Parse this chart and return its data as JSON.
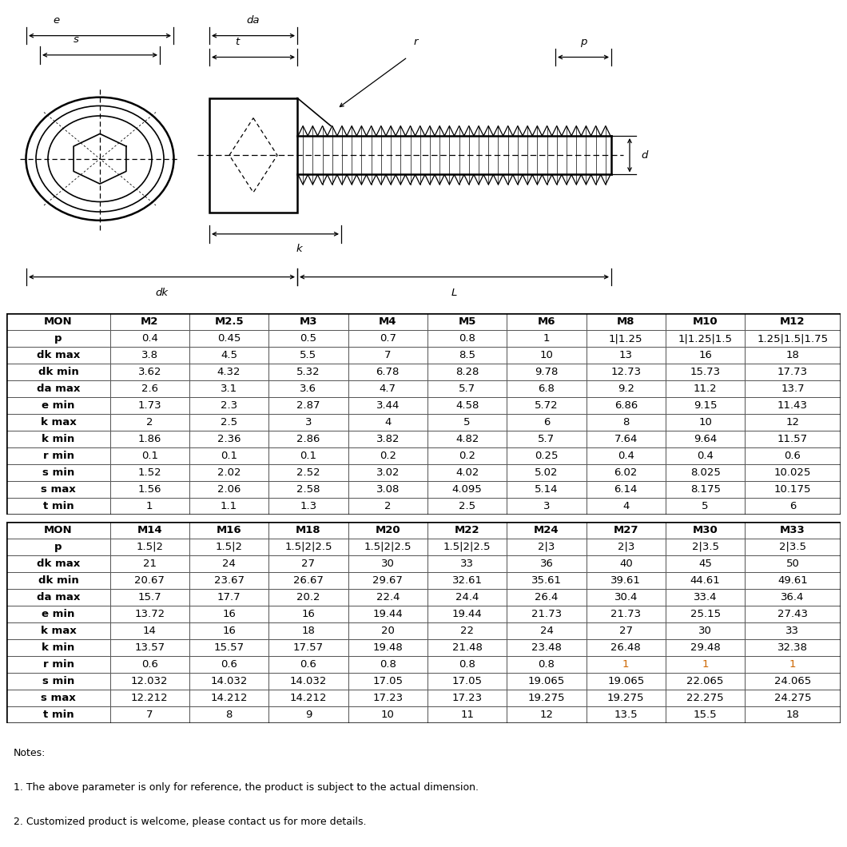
{
  "table1_headers": [
    "MON",
    "M2",
    "M2.5",
    "M3",
    "M4",
    "M5",
    "M6",
    "M8",
    "M10",
    "M12"
  ],
  "table1_rows": [
    [
      "p",
      "0.4",
      "0.45",
      "0.5",
      "0.7",
      "0.8",
      "1",
      "1|1.25",
      "1|1.25|1.5",
      "1.25|1.5|1.75"
    ],
    [
      "dk max",
      "3.8",
      "4.5",
      "5.5",
      "7",
      "8.5",
      "10",
      "13",
      "16",
      "18"
    ],
    [
      "dk min",
      "3.62",
      "4.32",
      "5.32",
      "6.78",
      "8.28",
      "9.78",
      "12.73",
      "15.73",
      "17.73"
    ],
    [
      "da max",
      "2.6",
      "3.1",
      "3.6",
      "4.7",
      "5.7",
      "6.8",
      "9.2",
      "11.2",
      "13.7"
    ],
    [
      "e min",
      "1.73",
      "2.3",
      "2.87",
      "3.44",
      "4.58",
      "5.72",
      "6.86",
      "9.15",
      "11.43"
    ],
    [
      "k max",
      "2",
      "2.5",
      "3",
      "4",
      "5",
      "6",
      "8",
      "10",
      "12"
    ],
    [
      "k min",
      "1.86",
      "2.36",
      "2.86",
      "3.82",
      "4.82",
      "5.7",
      "7.64",
      "9.64",
      "11.57"
    ],
    [
      "r min",
      "0.1",
      "0.1",
      "0.1",
      "0.2",
      "0.2",
      "0.25",
      "0.4",
      "0.4",
      "0.6"
    ],
    [
      "s min",
      "1.52",
      "2.02",
      "2.52",
      "3.02",
      "4.02",
      "5.02",
      "6.02",
      "8.025",
      "10.025"
    ],
    [
      "s max",
      "1.56",
      "2.06",
      "2.58",
      "3.08",
      "4.095",
      "5.14",
      "6.14",
      "8.175",
      "10.175"
    ],
    [
      "t min",
      "1",
      "1.1",
      "1.3",
      "2",
      "2.5",
      "3",
      "4",
      "5",
      "6"
    ]
  ],
  "table2_headers": [
    "MON",
    "M14",
    "M16",
    "M18",
    "M20",
    "M22",
    "M24",
    "M27",
    "M30",
    "M33"
  ],
  "table2_rows": [
    [
      "p",
      "1.5|2",
      "1.5|2",
      "1.5|2|2.5",
      "1.5|2|2.5",
      "1.5|2|2.5",
      "2|3",
      "2|3",
      "2|3.5",
      "2|3.5"
    ],
    [
      "dk max",
      "21",
      "24",
      "27",
      "30",
      "33",
      "36",
      "40",
      "45",
      "50"
    ],
    [
      "dk min",
      "20.67",
      "23.67",
      "26.67",
      "29.67",
      "32.61",
      "35.61",
      "39.61",
      "44.61",
      "49.61"
    ],
    [
      "da max",
      "15.7",
      "17.7",
      "20.2",
      "22.4",
      "24.4",
      "26.4",
      "30.4",
      "33.4",
      "36.4"
    ],
    [
      "e min",
      "13.72",
      "16",
      "16",
      "19.44",
      "19.44",
      "21.73",
      "21.73",
      "25.15",
      "27.43"
    ],
    [
      "k max",
      "14",
      "16",
      "18",
      "20",
      "22",
      "24",
      "27",
      "30",
      "33"
    ],
    [
      "k min",
      "13.57",
      "15.57",
      "17.57",
      "19.48",
      "21.48",
      "23.48",
      "26.48",
      "29.48",
      "32.38"
    ],
    [
      "r min",
      "0.6",
      "0.6",
      "0.6",
      "0.8",
      "0.8",
      "0.8",
      "1",
      "1",
      "1"
    ],
    [
      "s min",
      "12.032",
      "14.032",
      "14.032",
      "17.05",
      "17.05",
      "19.065",
      "19.065",
      "22.065",
      "24.065"
    ],
    [
      "s max",
      "12.212",
      "14.212",
      "14.212",
      "17.23",
      "17.23",
      "19.275",
      "19.275",
      "22.275",
      "24.275"
    ],
    [
      "t min",
      "7",
      "8",
      "9",
      "10",
      "11",
      "12",
      "13.5",
      "15.5",
      "18"
    ]
  ],
  "notes": [
    "Notes:",
    "1. The above parameter is only for reference, the product is subject to the actual dimension.",
    "2. Customized product is welcome, please contact us for more details."
  ],
  "col_widths_raw": [
    1.3,
    1.0,
    1.0,
    1.0,
    1.0,
    1.0,
    1.0,
    1.0,
    1.0,
    1.2
  ],
  "diagram_xlim": [
    0,
    10.6
  ],
  "diagram_ylim": [
    0,
    4.2
  ],
  "orange_color": "#cc6600"
}
